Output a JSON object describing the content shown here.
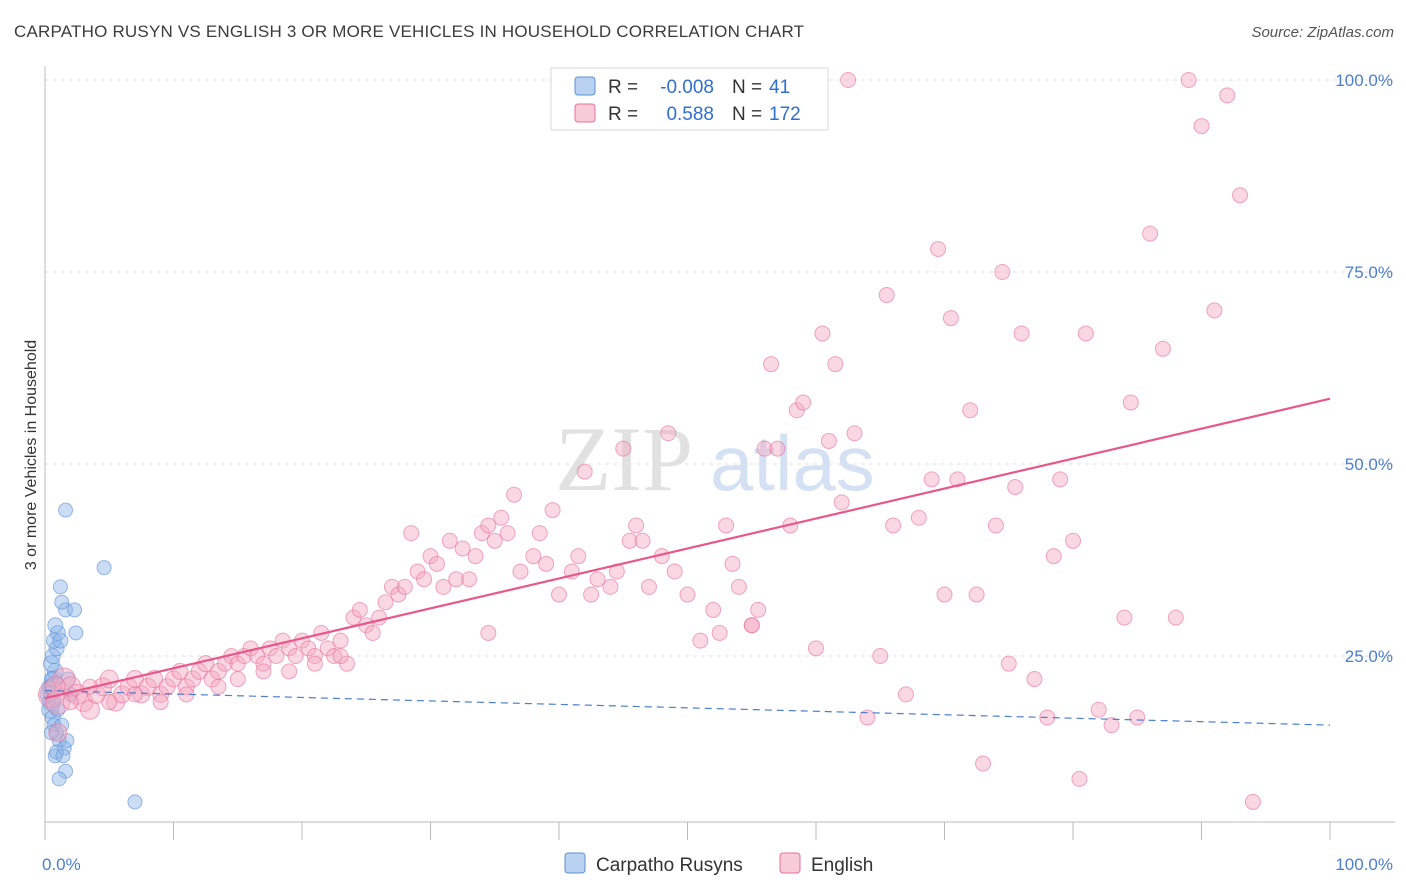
{
  "title": "CARPATHO RUSYN VS ENGLISH 3 OR MORE VEHICLES IN HOUSEHOLD CORRELATION CHART",
  "source": "Source: ZipAtlas.com",
  "chart_data": {
    "type": "scatter",
    "ylabel": "3 or more Vehicles in Household",
    "xlabel": "",
    "xlim": [
      0,
      100
    ],
    "ylim": [
      0,
      105
    ],
    "x_tick_labels": [
      "0.0%",
      "100.0%"
    ],
    "y_ticks": [
      25,
      50,
      75,
      100
    ],
    "y_tick_labels": [
      "25.0%",
      "50.0%",
      "75.0%",
      "100.0%"
    ],
    "grid": true,
    "legend_position": "top-center",
    "stats": [
      {
        "series": "Carpatho Rusyns",
        "r_label": "R =",
        "r_value": "-0.008",
        "n_label": "N =",
        "n_value": "41"
      },
      {
        "series": "English",
        "r_label": "R =",
        "r_value": "0.588",
        "n_label": "N =",
        "n_value": "172"
      }
    ],
    "series": [
      {
        "name": "Carpatho Rusyns",
        "color": "#8ab4e8",
        "edge": "#5b8fd6",
        "trend": {
          "x0": 0,
          "y0": 20.5,
          "x1": 100,
          "y1": 16.0,
          "style": "dashed",
          "color": "#4a7fd1"
        },
        "points": [
          [
            0.3,
            20
          ],
          [
            0.5,
            19
          ],
          [
            0.4,
            18
          ],
          [
            0.6,
            21
          ],
          [
            0.7,
            22
          ],
          [
            0.8,
            23
          ],
          [
            0.5,
            24
          ],
          [
            0.6,
            25
          ],
          [
            0.9,
            26
          ],
          [
            0.7,
            27
          ],
          [
            1.0,
            28
          ],
          [
            0.8,
            29
          ],
          [
            1.2,
            27
          ],
          [
            0.6,
            17
          ],
          [
            0.7,
            16
          ],
          [
            0.9,
            15
          ],
          [
            1.1,
            14
          ],
          [
            0.8,
            12
          ],
          [
            1.5,
            13
          ],
          [
            1.7,
            14
          ],
          [
            1.3,
            16
          ],
          [
            1.0,
            18
          ],
          [
            0.4,
            20
          ],
          [
            0.3,
            21
          ],
          [
            0.5,
            22
          ],
          [
            1.8,
            22
          ],
          [
            2.0,
            20
          ],
          [
            1.6,
            31
          ],
          [
            2.3,
            31
          ],
          [
            2.4,
            28
          ],
          [
            1.2,
            34
          ],
          [
            1.3,
            32
          ],
          [
            1.6,
            10
          ],
          [
            1.1,
            9
          ],
          [
            1.6,
            44
          ],
          [
            4.6,
            36.5
          ],
          [
            7.0,
            6
          ],
          [
            0.9,
            12.5
          ],
          [
            1.4,
            12
          ],
          [
            0.5,
            15
          ],
          [
            0.7,
            19.5
          ]
        ],
        "point_sizes": [
          14,
          14,
          13,
          13,
          12,
          12,
          12,
          11,
          11,
          11,
          11,
          11,
          11,
          11,
          10,
          10,
          10,
          10,
          10,
          10,
          10,
          10,
          10,
          10,
          10,
          10,
          10,
          10,
          10,
          10,
          10,
          10,
          10,
          10,
          10,
          10,
          10,
          10,
          10,
          10,
          10
        ]
      },
      {
        "name": "English",
        "color": "#f4a9c0",
        "edge": "#e86f98",
        "trend": {
          "x0": 0,
          "y0": 19.5,
          "x1": 100,
          "y1": 58.5,
          "style": "solid",
          "color": "#e8578a"
        },
        "points": [
          [
            0.5,
            20
          ],
          [
            1.0,
            19
          ],
          [
            1.5,
            22
          ],
          [
            2.0,
            21
          ],
          [
            2.5,
            20
          ],
          [
            3.0,
            19
          ],
          [
            3.5,
            18
          ],
          [
            4.0,
            20
          ],
          [
            4.5,
            21
          ],
          [
            5.0,
            22
          ],
          [
            5.5,
            19
          ],
          [
            6.0,
            20
          ],
          [
            6.5,
            21
          ],
          [
            7.0,
            22
          ],
          [
            7.5,
            20
          ],
          [
            8.0,
            21
          ],
          [
            8.5,
            22
          ],
          [
            9.0,
            20
          ],
          [
            9.5,
            21
          ],
          [
            10.0,
            22
          ],
          [
            10.5,
            23
          ],
          [
            11.0,
            21
          ],
          [
            11.5,
            22
          ],
          [
            12.0,
            23
          ],
          [
            12.5,
            24
          ],
          [
            13.0,
            22
          ],
          [
            13.5,
            23
          ],
          [
            14.0,
            24
          ],
          [
            14.5,
            25
          ],
          [
            15.0,
            24
          ],
          [
            15.5,
            25
          ],
          [
            16.0,
            26
          ],
          [
            16.5,
            25
          ],
          [
            17.0,
            24
          ],
          [
            17.5,
            26
          ],
          [
            18.0,
            25
          ],
          [
            18.5,
            27
          ],
          [
            19.0,
            26
          ],
          [
            19.5,
            25
          ],
          [
            20.0,
            27
          ],
          [
            20.5,
            26
          ],
          [
            21.0,
            25
          ],
          [
            21.5,
            28
          ],
          [
            22.0,
            26
          ],
          [
            22.5,
            25
          ],
          [
            23.0,
            27
          ],
          [
            23.5,
            24
          ],
          [
            24.0,
            30
          ],
          [
            24.5,
            31
          ],
          [
            25.0,
            29
          ],
          [
            25.5,
            28
          ],
          [
            26.0,
            30
          ],
          [
            26.5,
            32
          ],
          [
            27.0,
            34
          ],
          [
            27.5,
            33
          ],
          [
            28.0,
            34
          ],
          [
            29.0,
            36
          ],
          [
            29.5,
            35
          ],
          [
            30.0,
            38
          ],
          [
            30.5,
            37
          ],
          [
            31.0,
            34
          ],
          [
            31.5,
            40
          ],
          [
            32.0,
            35
          ],
          [
            32.5,
            39
          ],
          [
            33.0,
            35
          ],
          [
            33.5,
            38
          ],
          [
            34.0,
            41
          ],
          [
            34.5,
            42
          ],
          [
            35.0,
            40
          ],
          [
            35.5,
            43
          ],
          [
            36.0,
            41
          ],
          [
            36.5,
            46
          ],
          [
            37.0,
            36
          ],
          [
            38.0,
            38
          ],
          [
            38.5,
            41
          ],
          [
            39.0,
            37
          ],
          [
            40.0,
            33
          ],
          [
            41.0,
            36
          ],
          [
            41.5,
            38
          ],
          [
            42.0,
            49
          ],
          [
            42.5,
            33
          ],
          [
            43.0,
            35
          ],
          [
            44.0,
            34
          ],
          [
            44.5,
            36
          ],
          [
            45.0,
            52
          ],
          [
            45.5,
            40
          ],
          [
            46.0,
            42
          ],
          [
            47.0,
            34
          ],
          [
            48.0,
            38
          ],
          [
            48.5,
            54
          ],
          [
            49.0,
            36
          ],
          [
            50.0,
            33
          ],
          [
            51.0,
            27
          ],
          [
            52.0,
            31
          ],
          [
            52.5,
            28
          ],
          [
            53.0,
            42
          ],
          [
            53.5,
            37
          ],
          [
            54.0,
            34
          ],
          [
            55.0,
            29
          ],
          [
            55.5,
            31
          ],
          [
            56.0,
            52
          ],
          [
            56.5,
            63
          ],
          [
            57.0,
            52
          ],
          [
            58.0,
            42
          ],
          [
            58.5,
            57
          ],
          [
            59.0,
            58
          ],
          [
            60.0,
            26
          ],
          [
            60.5,
            67
          ],
          [
            61.0,
            53
          ],
          [
            61.5,
            63
          ],
          [
            62.0,
            45
          ],
          [
            63.0,
            54
          ],
          [
            64.0,
            17
          ],
          [
            65.0,
            25
          ],
          [
            65.5,
            72
          ],
          [
            66.0,
            42
          ],
          [
            67.0,
            20
          ],
          [
            68.0,
            43
          ],
          [
            69.0,
            48
          ],
          [
            69.5,
            78
          ],
          [
            70.0,
            33
          ],
          [
            70.5,
            69
          ],
          [
            71.0,
            48
          ],
          [
            72.0,
            57
          ],
          [
            72.5,
            33
          ],
          [
            73.0,
            11
          ],
          [
            74.0,
            42
          ],
          [
            74.5,
            75
          ],
          [
            75.0,
            24
          ],
          [
            75.5,
            47
          ],
          [
            76.0,
            67
          ],
          [
            77.0,
            22
          ],
          [
            78.0,
            17
          ],
          [
            78.5,
            38
          ],
          [
            79.0,
            48
          ],
          [
            80.0,
            40
          ],
          [
            80.5,
            9
          ],
          [
            81.0,
            67
          ],
          [
            82.0,
            18
          ],
          [
            83.0,
            16
          ],
          [
            84.0,
            30
          ],
          [
            84.5,
            58
          ],
          [
            85.0,
            17
          ],
          [
            86.0,
            80
          ],
          [
            87.0,
            65
          ],
          [
            88.0,
            30
          ],
          [
            89.0,
            100
          ],
          [
            90.0,
            94
          ],
          [
            91.0,
            70
          ],
          [
            92.0,
            98
          ],
          [
            93.0,
            85
          ],
          [
            94.0,
            6
          ],
          [
            62.5,
            100
          ],
          [
            55.0,
            29
          ],
          [
            46.5,
            40
          ],
          [
            39.5,
            44
          ],
          [
            34.5,
            28
          ],
          [
            28.5,
            41
          ],
          [
            23.0,
            25
          ],
          [
            21.0,
            24
          ],
          [
            19.0,
            23
          ],
          [
            17.0,
            23
          ],
          [
            15.0,
            22
          ],
          [
            13.5,
            21
          ],
          [
            11.0,
            20
          ],
          [
            9.0,
            19
          ],
          [
            7.0,
            20
          ],
          [
            5.0,
            19
          ],
          [
            3.5,
            21
          ],
          [
            2.0,
            19
          ],
          [
            1.0,
            15
          ],
          [
            0.8,
            21
          ]
        ],
        "point_sizes": [
          22,
          20,
          18,
          16,
          16,
          15,
          15,
          14,
          14,
          14,
          14,
          13,
          13,
          13,
          13,
          13,
          13,
          12,
          12,
          12,
          12,
          12,
          12,
          12,
          12,
          12,
          12,
          11,
          11,
          11,
          11,
          11,
          11,
          11,
          11,
          11,
          11,
          11,
          11,
          11,
          11,
          11,
          11,
          11,
          11,
          11,
          11,
          11,
          11,
          11,
          11,
          11,
          11,
          11,
          11,
          11,
          11,
          11,
          11,
          11,
          11,
          11,
          11,
          11,
          11,
          11,
          11,
          11,
          11,
          11,
          11,
          11,
          11,
          11,
          11,
          11,
          11,
          11,
          11,
          11,
          11,
          11,
          11,
          11,
          11,
          11,
          11,
          11,
          11,
          11,
          11,
          11,
          11,
          11,
          11,
          11,
          11,
          11,
          11,
          11,
          11,
          11,
          11,
          11,
          11,
          11,
          11,
          11,
          11,
          11,
          11,
          11,
          11,
          11,
          11,
          11,
          11,
          11,
          11,
          11,
          11,
          11,
          11,
          11,
          11,
          11,
          11,
          11,
          11,
          11,
          11,
          11,
          11,
          11,
          11,
          11,
          11,
          11,
          11,
          11,
          11,
          11,
          11,
          11,
          11,
          11,
          11,
          11,
          11,
          11,
          11,
          11,
          11,
          11,
          11,
          11,
          11,
          11,
          11,
          11,
          11,
          11,
          11,
          11,
          11,
          11,
          11,
          11,
          11,
          11,
          14,
          16
        ]
      }
    ]
  }
}
